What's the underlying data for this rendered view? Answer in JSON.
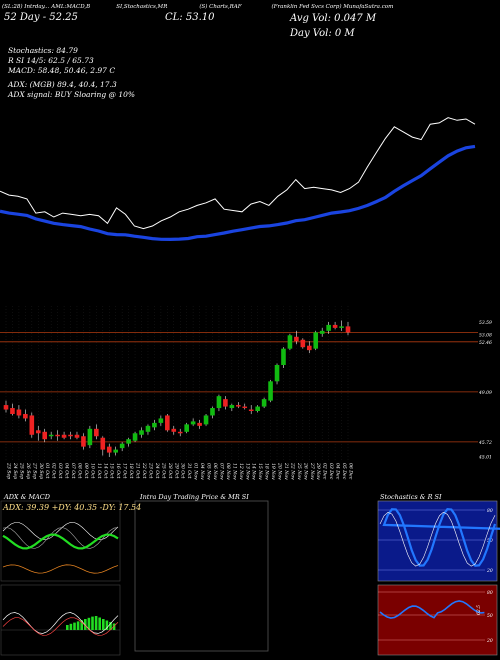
{
  "header": {
    "line1": [
      "(SL:28) Intrday...",
      "AML:MACD,B",
      "SI,Stochastics,MR",
      "(S) Charts,RAF",
      "(Franklin Fed Svcs Corp) MunafaSutra.com"
    ],
    "line2": "52 Day - 52.25",
    "close_label": "CL: 53.10",
    "avg_vol": "Avg Vol: 0.047  M",
    "day_vol": "Day Vol: 0   M"
  },
  "stats": {
    "stochastics": "Stochastics: 84.79",
    "r_si": "R                SI 14/5: 62.5 / 65.73",
    "macd": "MACD: 58.48, 50.46, 2.97 C",
    "adx": "ADX:                    (MGB) 89.4,  40.4,  17.3",
    "adx_signal": "ADX   signal:                    BUY Sloaring @ 10%"
  },
  "colors": {
    "bg": "#000000",
    "up": "#11bb11",
    "down": "#ee2222",
    "ma": "#1a44e0",
    "line": "#ffffff",
    "level": "#b03a10"
  },
  "chart_data": {
    "type": "candlestick",
    "x_dates": [
      "23 Sep",
      "24 Sep",
      "25 Sep",
      "26 Sep",
      "27 Sep",
      "30 Sep",
      "01 Oct",
      "02 Oct",
      "03 Oct",
      "04 Oct",
      "07 Oct",
      "08 Oct",
      "09 Oct",
      "10 Oct",
      "11 Oct",
      "14 Oct",
      "15 Oct",
      "16 Oct",
      "17 Oct",
      "18 Oct",
      "21 Oct",
      "22 Oct",
      "23 Oct",
      "24 Oct",
      "25 Oct",
      "28 Oct",
      "29 Oct",
      "30 Oct",
      "31 Oct",
      "01 Nov",
      "04 Nov",
      "05 Nov",
      "06 Nov",
      "07 Nov",
      "08 Nov",
      "11 Nov",
      "12 Nov",
      "13 Nov",
      "14 Nov",
      "15 Nov",
      "18 Nov",
      "19 Nov",
      "20 Nov",
      "21 Nov",
      "22 Nov",
      "25 Nov",
      "26 Nov",
      "27 Nov",
      "29 Nov",
      "02 Dec",
      "03 Dec",
      "04 Dec",
      "05 Dec",
      "06 Dec"
    ],
    "price_levels": [
      "53.59",
      "53.08",
      "52.46",
      "49.09",
      "45.72",
      "45.01"
    ],
    "ohlc": [
      [
        48.2,
        48.5,
        47.7,
        47.9
      ],
      [
        48.0,
        48.3,
        47.5,
        47.6
      ],
      [
        47.9,
        48.2,
        47.3,
        47.5
      ],
      [
        47.6,
        47.9,
        47.1,
        47.3
      ],
      [
        47.5,
        47.7,
        46.0,
        46.2
      ],
      [
        46.5,
        46.8,
        45.8,
        46.3
      ],
      [
        46.4,
        46.6,
        45.7,
        45.9
      ],
      [
        46.1,
        46.4,
        45.9,
        46.2
      ],
      [
        46.2,
        46.5,
        45.8,
        46.1
      ],
      [
        46.2,
        46.4,
        45.9,
        46.0
      ],
      [
        46.2,
        46.4,
        45.9,
        46.1
      ],
      [
        46.2,
        46.4,
        45.9,
        46.0
      ],
      [
        46.1,
        46.3,
        45.2,
        45.4
      ],
      [
        45.5,
        46.8,
        45.3,
        46.6
      ],
      [
        46.6,
        46.9,
        45.9,
        46.1
      ],
      [
        46.0,
        46.1,
        44.8,
        45.2
      ],
      [
        45.4,
        45.6,
        44.7,
        45.0
      ],
      [
        45.0,
        45.4,
        44.8,
        45.2
      ],
      [
        45.3,
        45.7,
        45.1,
        45.6
      ],
      [
        45.6,
        46.0,
        45.4,
        45.9
      ],
      [
        45.8,
        46.4,
        45.7,
        46.3
      ],
      [
        46.2,
        46.7,
        46.0,
        46.5
      ],
      [
        46.4,
        46.9,
        46.2,
        46.8
      ],
      [
        46.7,
        47.2,
        46.5,
        47.0
      ],
      [
        47.0,
        47.5,
        46.8,
        47.3
      ],
      [
        47.5,
        47.6,
        46.4,
        46.5
      ],
      [
        46.6,
        46.8,
        46.2,
        46.4
      ],
      [
        46.4,
        46.6,
        46.1,
        46.3
      ],
      [
        46.4,
        47.0,
        46.3,
        46.9
      ],
      [
        46.9,
        47.3,
        46.8,
        47.1
      ],
      [
        47.0,
        47.2,
        46.6,
        46.8
      ],
      [
        46.9,
        47.6,
        46.8,
        47.5
      ],
      [
        47.5,
        48.1,
        47.3,
        48.0
      ],
      [
        48.0,
        48.9,
        47.8,
        48.8
      ],
      [
        48.6,
        48.8,
        47.9,
        48.1
      ],
      [
        48.0,
        48.3,
        47.8,
        48.2
      ],
      [
        48.2,
        48.4,
        48.0,
        48.1
      ],
      [
        48.1,
        48.3,
        47.9,
        48.0
      ],
      [
        47.9,
        48.2,
        47.6,
        47.8
      ],
      [
        47.8,
        48.2,
        47.7,
        48.1
      ],
      [
        48.1,
        48.7,
        48.0,
        48.6
      ],
      [
        48.5,
        49.9,
        48.4,
        49.8
      ],
      [
        49.8,
        51.0,
        49.6,
        50.9
      ],
      [
        50.9,
        52.1,
        50.7,
        52.0
      ],
      [
        52.0,
        53.0,
        51.9,
        52.9
      ],
      [
        52.8,
        53.2,
        52.3,
        52.5
      ],
      [
        52.6,
        52.7,
        52.0,
        52.1
      ],
      [
        52.2,
        52.5,
        51.7,
        51.9
      ],
      [
        52.0,
        53.2,
        51.9,
        53.1
      ],
      [
        53.0,
        53.4,
        52.8,
        53.2
      ],
      [
        53.2,
        53.8,
        53.0,
        53.6
      ],
      [
        53.6,
        53.8,
        53.3,
        53.4
      ],
      [
        53.4,
        53.9,
        53.2,
        53.5
      ],
      [
        53.5,
        53.8,
        52.9,
        53.1
      ]
    ],
    "ylim": [
      44.5,
      54.2
    ]
  },
  "panels": {
    "adx_macd_title": "ADX  & MACD",
    "adx_values": "ADX: 39.39 +DY: 40.35 -DY: 17.54",
    "intraday_title": "Intra  Day Trading Price  & MR                SI",
    "stoch_title": "Stochastics & R                    SI",
    "stoch_levels": [
      "80",
      "50",
      "20"
    ],
    "rsi_levels": [
      "80",
      "50",
      "20"
    ],
    "rsi_value": "62.5"
  }
}
